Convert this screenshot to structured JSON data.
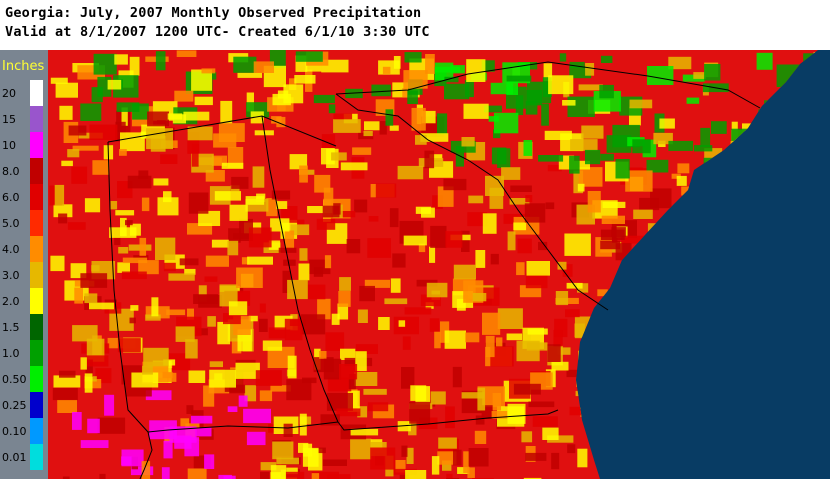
{
  "header": {
    "line1": "Georgia: July, 2007 Monthly Observed Precipitation",
    "line2": "Valid at 8/1/2007 1200 UTC- Created 6/1/10 3:30 UTC"
  },
  "legend": {
    "title": "Inches",
    "items": [
      {
        "label": "20",
        "color": "#ffffff"
      },
      {
        "label": "15",
        "color": "#9955cc"
      },
      {
        "label": "10",
        "color": "#ff00ff"
      },
      {
        "label": "8.0",
        "color": "#c00000"
      },
      {
        "label": "6.0",
        "color": "#e00000"
      },
      {
        "label": "5.0",
        "color": "#ff2a00"
      },
      {
        "label": "4.0",
        "color": "#ff8c00"
      },
      {
        "label": "3.0",
        "color": "#e6b800"
      },
      {
        "label": "2.0",
        "color": "#ffff00"
      },
      {
        "label": "1.5",
        "color": "#006600"
      },
      {
        "label": "1.0",
        "color": "#00a000"
      },
      {
        "label": "0.50",
        "color": "#00ee00"
      },
      {
        "label": "0.25",
        "color": "#0000cc"
      },
      {
        "label": "0.10",
        "color": "#0099ff"
      },
      {
        "label": "0.01",
        "color": "#00dddd"
      }
    ]
  },
  "map": {
    "ocean_color": "#083c64",
    "base_color": "#e01010",
    "boundary_color": "#000000"
  }
}
